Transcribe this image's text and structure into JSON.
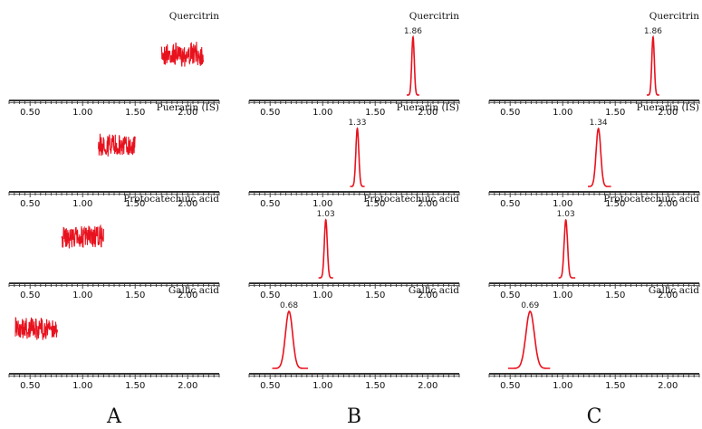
{
  "panels": [
    {
      "label": "A"
    },
    {
      "label": "B"
    },
    {
      "label": "C"
    }
  ],
  "colors": {
    "trace": "#e8121e",
    "axis": "#333333"
  },
  "chart_data": [
    {
      "type": "line",
      "panel": "A",
      "compound": "Quercitrin",
      "trace": "noise",
      "x_range": [
        1.75,
        2.15
      ],
      "xlim": [
        0.3,
        2.3
      ],
      "xticks": [
        "0.50",
        "1.00",
        "1.50",
        "2.00"
      ]
    },
    {
      "type": "line",
      "panel": "A",
      "compound": "Puerarin (IS)",
      "trace": "noise",
      "x_range": [
        1.15,
        1.5
      ],
      "xlim": [
        0.3,
        2.3
      ],
      "xticks": [
        "0.50",
        "1.00",
        "1.50",
        "2.00"
      ]
    },
    {
      "type": "line",
      "panel": "A",
      "compound": "Protocatechuic acid",
      "trace": "noise",
      "x_range": [
        0.8,
        1.2
      ],
      "xlim": [
        0.3,
        2.3
      ],
      "xticks": [
        "0.50",
        "1.00",
        "1.50",
        "2.00"
      ]
    },
    {
      "type": "line",
      "panel": "A",
      "compound": "Gallic acid",
      "trace": "noise",
      "x_range": [
        0.36,
        0.76
      ],
      "xlim": [
        0.3,
        2.3
      ],
      "xticks": [
        "0.50",
        "1.00",
        "1.50",
        "2.00"
      ]
    },
    {
      "type": "line",
      "panel": "B",
      "compound": "Quercitrin",
      "trace": "peak",
      "retention_time": "1.86",
      "peak_x": 1.86,
      "x_range": [
        1.8,
        1.92
      ],
      "xlim": [
        0.3,
        2.3
      ],
      "xticks": [
        "0.50",
        "1.00",
        "1.50",
        "2.00"
      ]
    },
    {
      "type": "line",
      "panel": "B",
      "compound": "Puerarin (IS)",
      "trace": "peak",
      "retention_time": "1.33",
      "peak_x": 1.33,
      "x_range": [
        1.26,
        1.4
      ],
      "xlim": [
        0.3,
        2.3
      ],
      "xticks": [
        "0.50",
        "1.00",
        "1.50",
        "2.00"
      ]
    },
    {
      "type": "line",
      "panel": "B",
      "compound": "Protocatechuic acid",
      "trace": "peak",
      "retention_time": "1.03",
      "peak_x": 1.03,
      "x_range": [
        0.96,
        1.1
      ],
      "xlim": [
        0.3,
        2.3
      ],
      "xticks": [
        "0.50",
        "1.00",
        "1.50",
        "2.00"
      ]
    },
    {
      "type": "line",
      "panel": "B",
      "compound": "Gallic acid",
      "trace": "peak",
      "retention_time": "0.68",
      "peak_x": 0.68,
      "x_range": [
        0.52,
        0.86
      ],
      "xlim": [
        0.3,
        2.3
      ],
      "xticks": [
        "0.50",
        "1.00",
        "1.50",
        "2.00"
      ]
    },
    {
      "type": "line",
      "panel": "C",
      "compound": "Quercitrin",
      "trace": "peak",
      "retention_time": "1.86",
      "peak_x": 1.86,
      "x_range": [
        1.8,
        1.92
      ],
      "xlim": [
        0.3,
        2.3
      ],
      "xticks": [
        "0.50",
        "1.00",
        "1.50",
        "2.00"
      ]
    },
    {
      "type": "line",
      "panel": "C",
      "compound": "Puerarin (IS)",
      "trace": "peak",
      "retention_time": "1.34",
      "peak_x": 1.34,
      "x_range": [
        1.24,
        1.46
      ],
      "xlim": [
        0.3,
        2.3
      ],
      "xticks": [
        "0.50",
        "1.00",
        "1.50",
        "2.00"
      ]
    },
    {
      "type": "line",
      "panel": "C",
      "compound": "Protocatechuic acid",
      "trace": "peak",
      "retention_time": "1.03",
      "peak_x": 1.03,
      "x_range": [
        0.96,
        1.12
      ],
      "xlim": [
        0.3,
        2.3
      ],
      "xticks": [
        "0.50",
        "1.00",
        "1.50",
        "2.00"
      ]
    },
    {
      "type": "line",
      "panel": "C",
      "compound": "Gallic acid",
      "trace": "peak",
      "retention_time": "0.69",
      "peak_x": 0.69,
      "x_range": [
        0.48,
        0.88
      ],
      "xlim": [
        0.3,
        2.3
      ],
      "xticks": [
        "0.50",
        "1.00",
        "1.50",
        "2.00"
      ]
    }
  ]
}
